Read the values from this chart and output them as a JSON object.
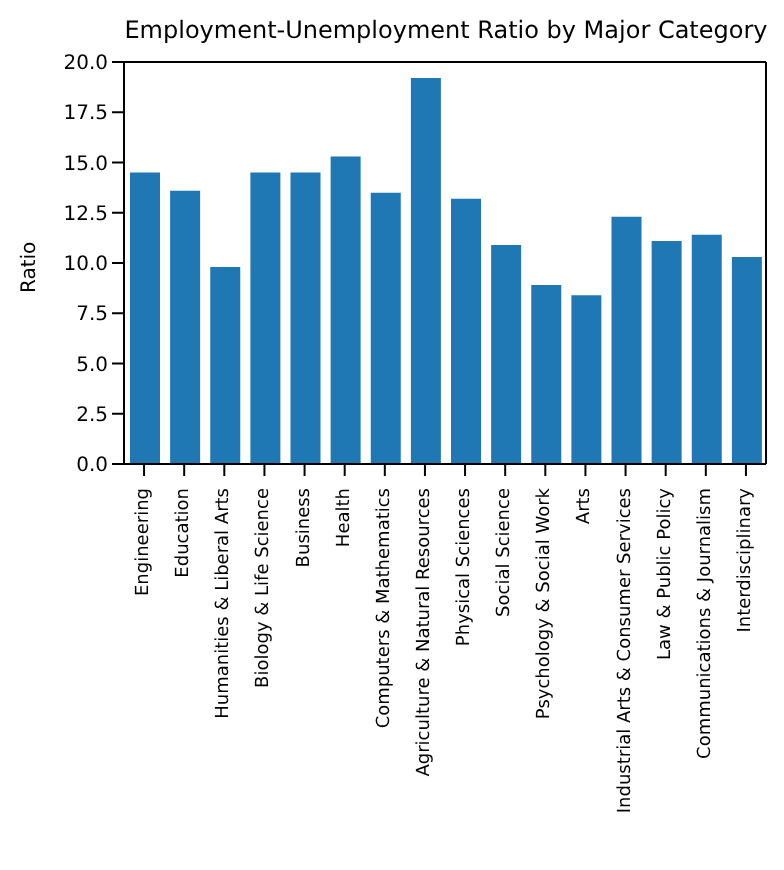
{
  "chart_data": {
    "type": "bar",
    "title": "Employment-Unemployment Ratio by Major Category",
    "ylabel": "Ratio",
    "categories": [
      "Engineering",
      "Education",
      "Humanities & Liberal Arts",
      "Biology & Life Science",
      "Business",
      "Health",
      "Computers & Mathematics",
      "Agriculture & Natural Resources",
      "Physical Sciences",
      "Social Science",
      "Psychology & Social Work",
      "Arts",
      "Industrial Arts & Consumer Services",
      "Law & Public Policy",
      "Communications & Journalism",
      "Interdisciplinary"
    ],
    "values": [
      14.5,
      13.6,
      9.8,
      14.5,
      14.5,
      15.3,
      13.5,
      19.2,
      13.2,
      10.9,
      8.9,
      8.4,
      12.3,
      11.1,
      11.4,
      10.3
    ],
    "color": "#1f77b4",
    "ylim": [
      0,
      20
    ],
    "yticks": [
      {
        "value": 0,
        "label": "0.0"
      },
      2.5,
      {
        "value": 5,
        "label": "5.0"
      },
      7.5,
      {
        "value": 10,
        "label": "10.0"
      },
      12.5,
      {
        "value": 15,
        "label": "15.0"
      },
      17.5,
      {
        "value": 20,
        "label": "20.0"
      }
    ],
    "grid": false
  }
}
